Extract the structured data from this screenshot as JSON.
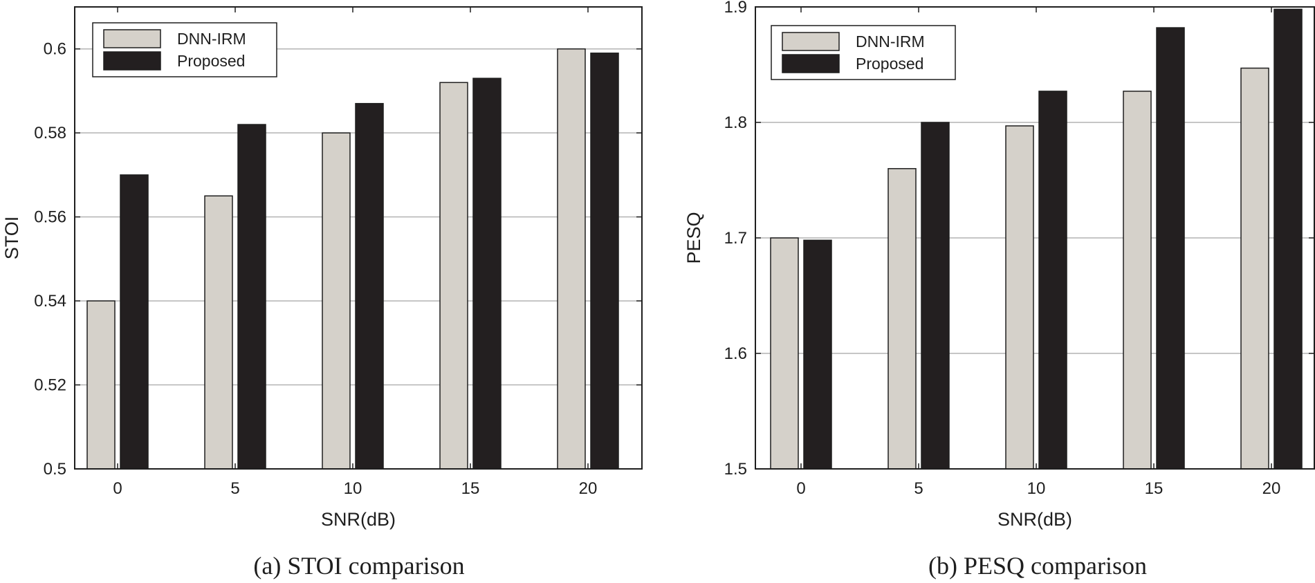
{
  "chart_data": [
    {
      "type": "bar",
      "caption": "(a) STOI comparison",
      "categories": [
        "0",
        "5",
        "10",
        "15",
        "20"
      ],
      "series": [
        {
          "name": "DNN-IRM",
          "values": [
            0.54,
            0.565,
            0.58,
            0.592,
            0.6
          ]
        },
        {
          "name": "Proposed",
          "values": [
            0.57,
            0.582,
            0.587,
            0.593,
            0.599
          ]
        }
      ],
      "xlabel": "SNR(dB)",
      "ylabel": "STOI",
      "ylim": [
        0.5,
        0.61
      ],
      "yticks": [
        "0.5",
        "0.52",
        "0.54",
        "0.56",
        "0.58",
        "0.6"
      ],
      "grid": true,
      "legend_position": "top-left"
    },
    {
      "type": "bar",
      "caption": "(b) PESQ comparison",
      "categories": [
        "0",
        "5",
        "10",
        "15",
        "20"
      ],
      "series": [
        {
          "name": "DNN-IRM",
          "values": [
            1.7,
            1.76,
            1.797,
            1.827,
            1.847
          ]
        },
        {
          "name": "Proposed",
          "values": [
            1.698,
            1.8,
            1.827,
            1.882,
            1.898
          ]
        }
      ],
      "xlabel": "SNR(dB)",
      "ylabel": "PESQ",
      "ylim": [
        1.5,
        1.9
      ],
      "yticks": [
        "1.5",
        "1.6",
        "1.7",
        "1.8",
        "1.9"
      ],
      "grid": true,
      "legend_position": "top-left"
    }
  ],
  "colors": {
    "series": [
      "#d5d1ca",
      "#231f20"
    ],
    "axis": "#1e1e1e",
    "grid": "#b3b3b3"
  }
}
